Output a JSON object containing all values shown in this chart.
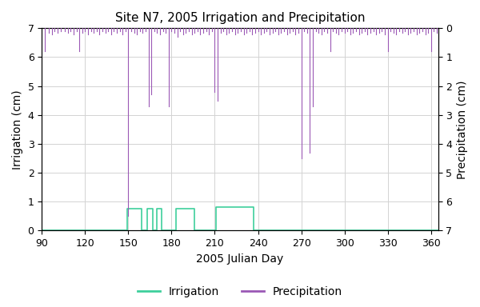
{
  "title": "Site N7, 2005 Irrigation and Precipitation",
  "xlabel": "2005 Julian Day",
  "ylabel_left": "Irrigation (cm)",
  "ylabel_right": "Precipitation (cm)",
  "xlim": [
    90,
    365
  ],
  "xticks": [
    90,
    120,
    150,
    180,
    210,
    240,
    270,
    300,
    330,
    360
  ],
  "ylim_left": [
    0,
    7
  ],
  "ylim_right": [
    0,
    7
  ],
  "yticks_left": [
    0,
    1,
    2,
    3,
    4,
    5,
    6,
    7
  ],
  "yticks_right": [
    0,
    1,
    2,
    3,
    4,
    5,
    6,
    7
  ],
  "irrig_color": "#3ecf9c",
  "precip_color": "#9b59b6",
  "legend_labels": [
    "Irrigation",
    "Precipitation"
  ],
  "irrigation": [
    [
      90,
      0
    ],
    [
      148,
      0
    ],
    [
      149,
      0.75
    ],
    [
      158,
      0.75
    ],
    [
      159,
      0
    ],
    [
      162,
      0
    ],
    [
      163,
      0.75
    ],
    [
      166,
      0.75
    ],
    [
      167,
      0
    ],
    [
      169,
      0
    ],
    [
      170,
      0.75
    ],
    [
      172,
      0.75
    ],
    [
      173,
      0
    ],
    [
      182,
      0
    ],
    [
      183,
      0.75
    ],
    [
      195,
      0.75
    ],
    [
      196,
      0
    ],
    [
      210,
      0
    ],
    [
      211,
      0.8
    ],
    [
      236,
      0.8
    ],
    [
      237,
      0
    ],
    [
      365,
      0
    ]
  ],
  "precip_events": [
    [
      92,
      0.8
    ],
    [
      95,
      0.15
    ],
    [
      97,
      0.2
    ],
    [
      99,
      0.1
    ],
    [
      101,
      0.15
    ],
    [
      103,
      0.1
    ],
    [
      106,
      0.1
    ],
    [
      108,
      0.15
    ],
    [
      110,
      0.1
    ],
    [
      112,
      0.2
    ],
    [
      114,
      0.1
    ],
    [
      116,
      0.8
    ],
    [
      118,
      0.15
    ],
    [
      120,
      0.1
    ],
    [
      122,
      0.2
    ],
    [
      124,
      0.1
    ],
    [
      126,
      0.15
    ],
    [
      128,
      0.1
    ],
    [
      130,
      0.2
    ],
    [
      132,
      0.1
    ],
    [
      134,
      0.15
    ],
    [
      136,
      0.1
    ],
    [
      138,
      0.2
    ],
    [
      140,
      0.1
    ],
    [
      142,
      0.15
    ],
    [
      144,
      0.1
    ],
    [
      146,
      0.2
    ],
    [
      148,
      0.1
    ],
    [
      150,
      6.5
    ],
    [
      152,
      0.1
    ],
    [
      154,
      0.15
    ],
    [
      156,
      0.2
    ],
    [
      158,
      0.1
    ],
    [
      160,
      0.15
    ],
    [
      162,
      0.1
    ],
    [
      164,
      2.7
    ],
    [
      166,
      2.3
    ],
    [
      168,
      0.1
    ],
    [
      170,
      0.15
    ],
    [
      172,
      0.2
    ],
    [
      174,
      0.1
    ],
    [
      176,
      0.15
    ],
    [
      178,
      2.7
    ],
    [
      180,
      0.1
    ],
    [
      182,
      0.15
    ],
    [
      184,
      0.3
    ],
    [
      186,
      0.1
    ],
    [
      188,
      0.2
    ],
    [
      190,
      0.15
    ],
    [
      192,
      0.1
    ],
    [
      194,
      0.2
    ],
    [
      196,
      0.15
    ],
    [
      198,
      0.1
    ],
    [
      200,
      0.2
    ],
    [
      202,
      0.15
    ],
    [
      204,
      0.1
    ],
    [
      206,
      0.2
    ],
    [
      208,
      0.1
    ],
    [
      210,
      2.2
    ],
    [
      212,
      2.5
    ],
    [
      214,
      0.15
    ],
    [
      216,
      0.1
    ],
    [
      218,
      0.2
    ],
    [
      220,
      0.15
    ],
    [
      222,
      0.1
    ],
    [
      224,
      0.2
    ],
    [
      226,
      0.15
    ],
    [
      228,
      0.1
    ],
    [
      230,
      0.2
    ],
    [
      232,
      0.15
    ],
    [
      234,
      0.1
    ],
    [
      236,
      0.2
    ],
    [
      238,
      0.15
    ],
    [
      240,
      0.1
    ],
    [
      242,
      0.2
    ],
    [
      244,
      0.15
    ],
    [
      246,
      0.1
    ],
    [
      248,
      0.2
    ],
    [
      250,
      0.15
    ],
    [
      252,
      0.1
    ],
    [
      254,
      0.2
    ],
    [
      256,
      0.15
    ],
    [
      258,
      0.1
    ],
    [
      260,
      0.2
    ],
    [
      262,
      0.15
    ],
    [
      264,
      0.1
    ],
    [
      266,
      0.2
    ],
    [
      268,
      0.15
    ],
    [
      270,
      4.5
    ],
    [
      272,
      0.1
    ],
    [
      274,
      0.15
    ],
    [
      276,
      4.3
    ],
    [
      278,
      2.7
    ],
    [
      280,
      0.1
    ],
    [
      282,
      0.15
    ],
    [
      284,
      0.2
    ],
    [
      286,
      0.1
    ],
    [
      288,
      0.15
    ],
    [
      290,
      0.8
    ],
    [
      292,
      0.1
    ],
    [
      294,
      0.15
    ],
    [
      296,
      0.2
    ],
    [
      298,
      0.1
    ],
    [
      300,
      0.15
    ],
    [
      302,
      0.1
    ],
    [
      304,
      0.2
    ],
    [
      306,
      0.15
    ],
    [
      308,
      0.1
    ],
    [
      310,
      0.2
    ],
    [
      312,
      0.15
    ],
    [
      314,
      0.1
    ],
    [
      316,
      0.2
    ],
    [
      318,
      0.15
    ],
    [
      320,
      0.1
    ],
    [
      322,
      0.2
    ],
    [
      324,
      0.15
    ],
    [
      326,
      0.1
    ],
    [
      328,
      0.2
    ],
    [
      330,
      0.8
    ],
    [
      332,
      0.1
    ],
    [
      334,
      0.15
    ],
    [
      336,
      0.2
    ],
    [
      338,
      0.1
    ],
    [
      340,
      0.15
    ],
    [
      342,
      0.1
    ],
    [
      344,
      0.2
    ],
    [
      346,
      0.15
    ],
    [
      348,
      0.1
    ],
    [
      350,
      0.2
    ],
    [
      352,
      0.15
    ],
    [
      354,
      0.1
    ],
    [
      356,
      0.2
    ],
    [
      358,
      0.15
    ],
    [
      360,
      0.8
    ],
    [
      362,
      0.1
    ],
    [
      364,
      0.15
    ]
  ]
}
